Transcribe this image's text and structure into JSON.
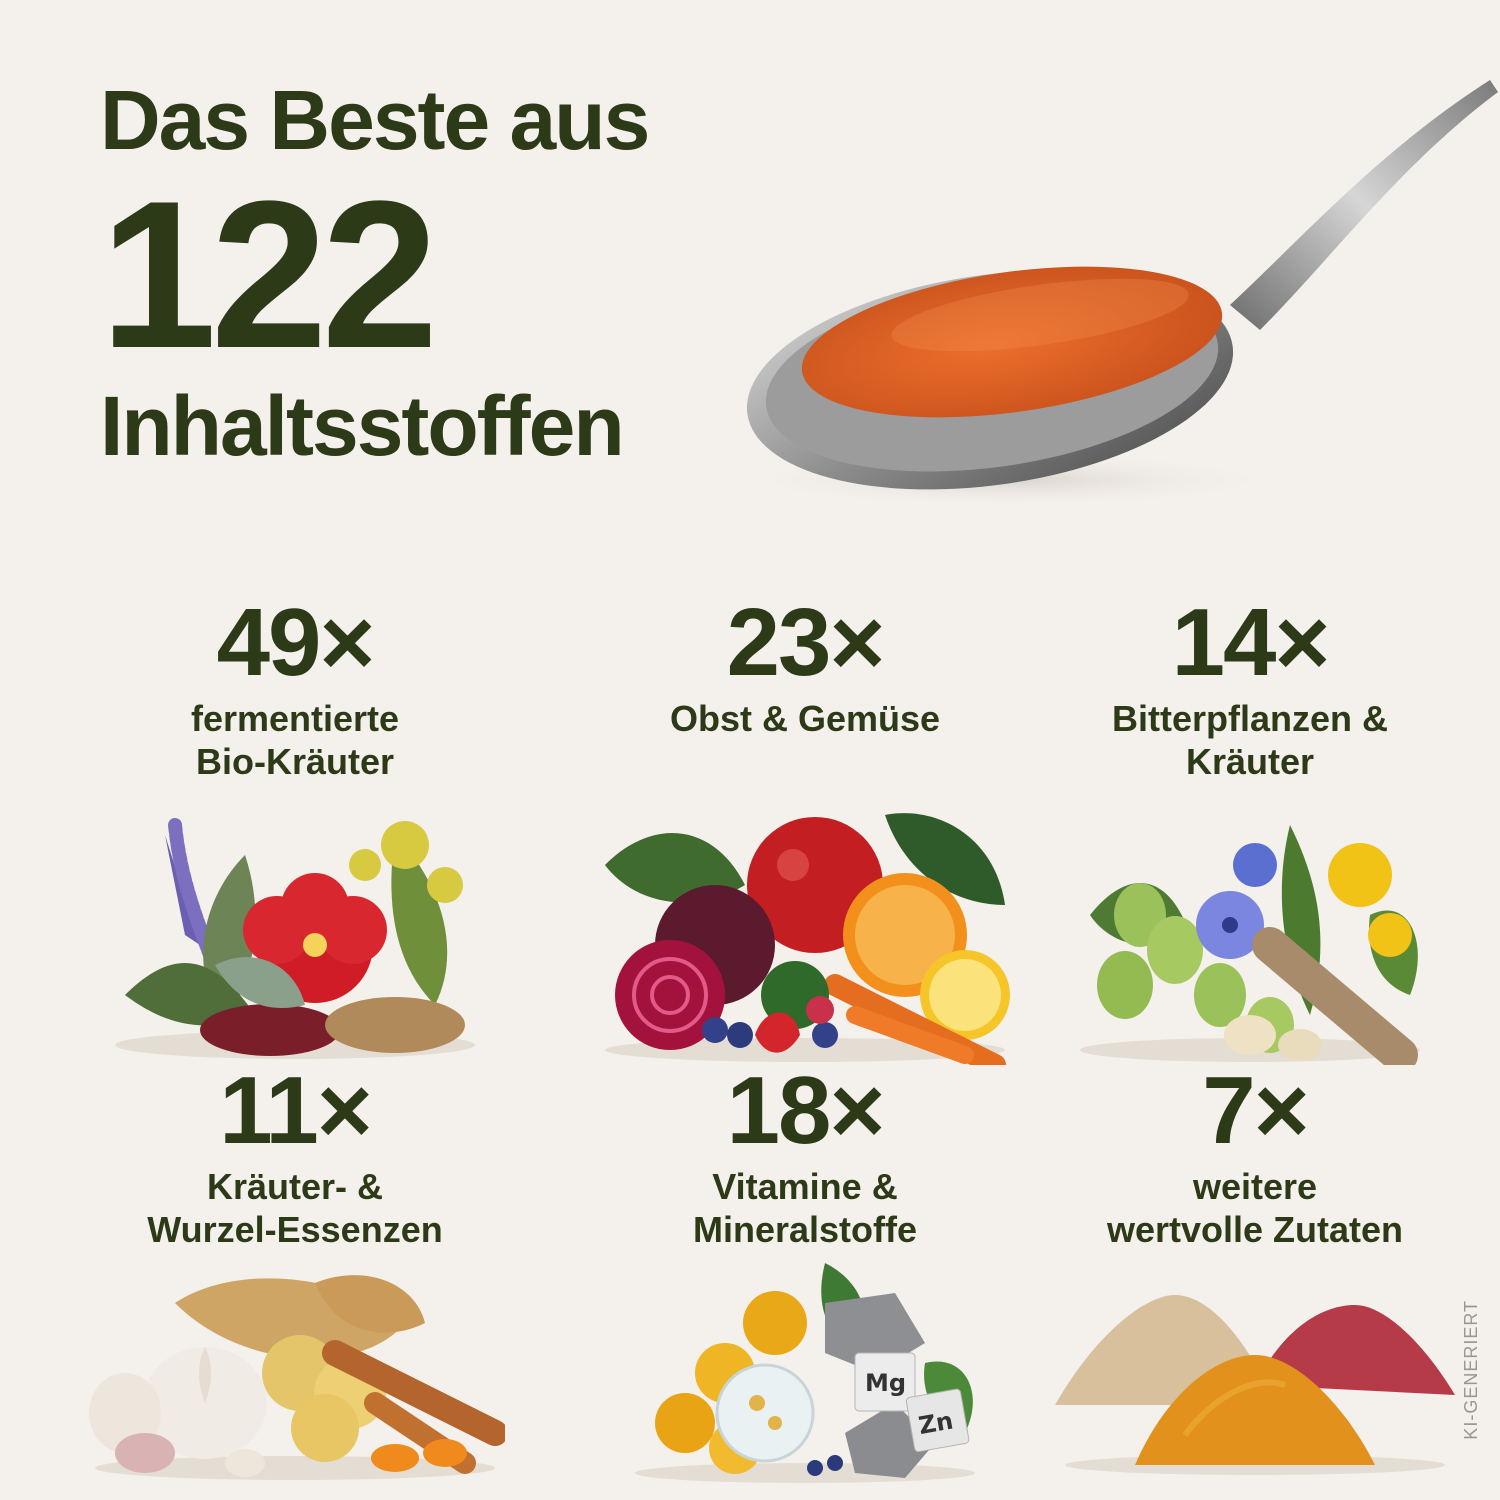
{
  "headline": {
    "line1": "Das Beste aus",
    "number": "122",
    "line3": "Inhaltsstoffen"
  },
  "colors": {
    "background": "#f4f0ec",
    "text": "#2d3a17",
    "liquid": "#e0652a"
  },
  "categories": [
    {
      "count": "49×",
      "label_line1": "fermentierte",
      "label_line2": "Bio-Kräuter",
      "icon": "herbs-icon"
    },
    {
      "count": "23×",
      "label_line1": "Obst & Gemüse",
      "label_line2": "",
      "icon": "fruit-vegetables-icon"
    },
    {
      "count": "14×",
      "label_line1": "Bitterpflanzen &",
      "label_line2": "Kräuter",
      "icon": "bitter-plants-icon"
    },
    {
      "count": "11×",
      "label_line1": "Kräuter- &",
      "label_line2": "Wurzel-Essenzen",
      "icon": "roots-icon"
    },
    {
      "count": "18×",
      "label_line1": "Vitamine &",
      "label_line2": "Mineralstoffe",
      "icon": "vitamins-minerals-icon",
      "element_tags": [
        "Mg",
        "Zn"
      ]
    },
    {
      "count": "7×",
      "label_line1": "weitere",
      "label_line2": "wertvolle Zutaten",
      "icon": "powders-icon"
    }
  ],
  "badge": "KI-GENERIERT"
}
